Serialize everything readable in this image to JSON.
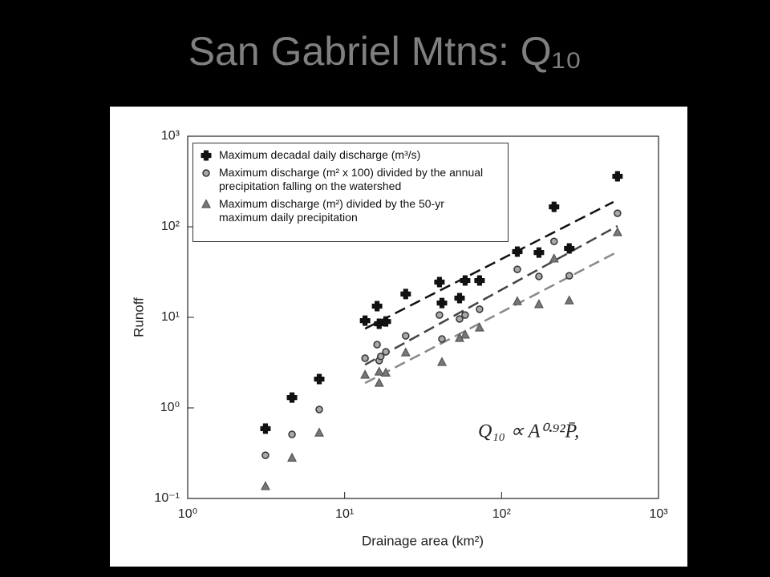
{
  "chart_data": {
    "type": "scatter",
    "title": "San Gabriel Mtns: Q₁₀",
    "x_label": "Drainage area (km²)",
    "y_label": "Runoff",
    "log_x": true,
    "log_y": true,
    "xlim": [
      1,
      1000
    ],
    "xticks": [
      {
        "value": 1,
        "label": "10⁰"
      },
      {
        "value": 10,
        "label": "10¹"
      },
      {
        "value": 100,
        "label": "10²"
      },
      {
        "value": 1000,
        "label": "10³"
      }
    ],
    "ylim": [
      0.1,
      1000
    ],
    "yticks": [
      {
        "value": 0.1,
        "label": "10⁻¹"
      },
      {
        "value": 1,
        "label": "10⁰"
      },
      {
        "value": 10,
        "label": "10¹"
      },
      {
        "value": 100,
        "label": "10²"
      },
      {
        "value": 1000,
        "label": "10³"
      }
    ],
    "legend": "upper left",
    "annotation": "Q₁₀ ∝ A⁰·⁹²P̄,",
    "series": [
      {
        "name": "Maximum decadal daily discharge (m³/s)",
        "marker": "cross",
        "color": "#111111",
        "x": [
          3.13,
          4.62,
          6.89,
          13.5,
          16.1,
          16.6,
          18.3,
          24.5,
          40.2,
          41.7,
          54,
          58.6,
          72.4,
          126,
          173,
          216,
          270,
          548
        ],
        "values": [
          0.59,
          1.3,
          2.08,
          9.2,
          13.3,
          8.5,
          9.0,
          18.1,
          24.5,
          14.4,
          16.3,
          25.5,
          25.5,
          53.2,
          52,
          166,
          57.7,
          361
        ]
      },
      {
        "name": "Maximum discharge (m² x 100) divided by the annual precipitation falling on the watershed",
        "marker": "circle",
        "color": "#a8a8a8",
        "x": [
          3.13,
          4.62,
          6.89,
          13.5,
          16.1,
          16.6,
          17.0,
          18.3,
          24.5,
          40.2,
          41.7,
          54,
          58.6,
          72.4,
          126,
          173,
          216,
          270,
          548
        ],
        "values": [
          0.3,
          0.51,
          0.96,
          3.54,
          5.0,
          3.33,
          3.7,
          4.16,
          6.25,
          10.6,
          5.77,
          9.6,
          10.6,
          12.3,
          33.9,
          28.3,
          69,
          28.8,
          141
        ]
      },
      {
        "name": "Maximum discharge (m²) divided by the 50-yr maximum daily precipitation",
        "marker": "triangle",
        "color": "#777777",
        "x": [
          3.13,
          4.62,
          6.89,
          13.5,
          16.6,
          16.6,
          18.3,
          24.5,
          41.7,
          54,
          58.6,
          72.4,
          126,
          173,
          216,
          270,
          548
        ],
        "values": [
          0.136,
          0.28,
          0.53,
          2.31,
          1.88,
          2.5,
          2.44,
          4.08,
          3.19,
          5.89,
          6.4,
          7.67,
          15.0,
          13.9,
          44.3,
          15.3,
          86.7
        ]
      }
    ],
    "fits": [
      {
        "color": "#111111",
        "x": [
          13.5,
          516
        ],
        "values": [
          7.5,
          188
        ]
      },
      {
        "color": "#444444",
        "x": [
          13.5,
          548
        ],
        "values": [
          3.0,
          102
        ]
      },
      {
        "color": "#888888",
        "x": [
          13.5,
          548
        ],
        "values": [
          1.88,
          53
        ]
      }
    ]
  }
}
